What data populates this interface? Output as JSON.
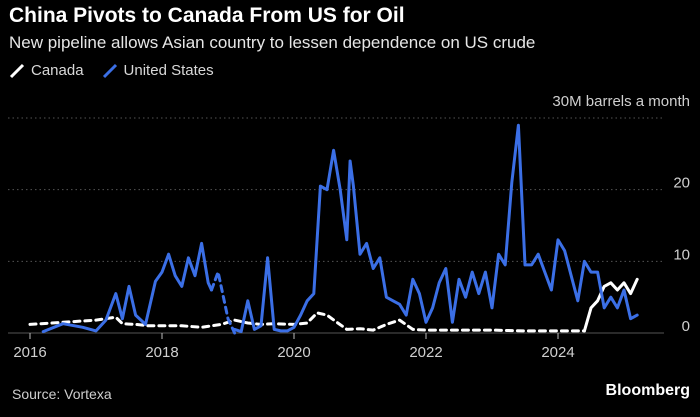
{
  "header": {
    "title": "China Pivots to Canada From US for Oil",
    "subtitle": "New pipeline allows Asian country to lessen dependence on US crude"
  },
  "footer": {
    "source": "Source: Vortexa",
    "brand": "Bloomberg"
  },
  "colors": {
    "background": "#000000",
    "canada": "#ffffff",
    "united_states": "#3b6fe6",
    "grid": "#555555",
    "axis_text": "#cfcfcf"
  },
  "chart_data": {
    "type": "line",
    "title": "China Pivots to Canada From US for Oil",
    "subtitle": "New pipeline allows Asian country to lessen dependence on US crude",
    "ylabel": "30M barrels a month",
    "xlim": [
      2015.7,
      2025.5
    ],
    "ylim": [
      0,
      30
    ],
    "x_ticks": [
      2016,
      2018,
      2020,
      2022,
      2024
    ],
    "x_tick_labels": [
      "2016",
      "2018",
      "2020",
      "2022",
      "2024"
    ],
    "y_ticks": [
      0,
      10,
      20,
      30
    ],
    "y_tick_labels": [
      "0",
      "10",
      "20",
      "30M barrels a month"
    ],
    "grid": true,
    "legend": "top-left",
    "series": [
      {
        "name": "Canada",
        "color": "#ffffff",
        "segments": [
          {
            "style": "dashed",
            "x": [
              2016.0,
              2016.5,
              2017.0,
              2017.3,
              2017.4,
              2017.6,
              2017.8,
              2018.0,
              2018.3,
              2018.6,
              2018.9,
              2019.1,
              2019.3,
              2019.5,
              2019.7,
              2020.0,
              2020.2,
              2020.35,
              2020.5,
              2020.65,
              2020.8,
              2021.0,
              2021.2,
              2021.4,
              2021.6,
              2021.8,
              2022.0,
              2022.5,
              2023.0,
              2023.5,
              2024.0,
              2024.4
            ],
            "y": [
              1.2,
              1.5,
              1.8,
              2.2,
              1.3,
              1.2,
              1.0,
              1.0,
              1.0,
              0.8,
              1.2,
              1.8,
              1.4,
              1.2,
              1.3,
              1.2,
              1.4,
              2.8,
              2.5,
              1.5,
              0.5,
              0.6,
              0.4,
              1.2,
              1.8,
              0.5,
              0.4,
              0.4,
              0.4,
              0.3,
              0.3,
              0.3
            ]
          },
          {
            "style": "solid",
            "x": [
              2024.4,
              2024.5,
              2024.6,
              2024.7,
              2024.8,
              2024.9,
              2025.0,
              2025.1,
              2025.2
            ],
            "y": [
              0.3,
              3.5,
              4.5,
              6.5,
              7.0,
              6.0,
              7.0,
              5.5,
              7.5
            ]
          }
        ]
      },
      {
        "name": "United States",
        "color": "#3b6fe6",
        "segments": [
          {
            "style": "solid",
            "x": [
              2016.2,
              2016.5,
              2016.8,
              2017.0,
              2017.15,
              2017.3,
              2017.4,
              2017.5,
              2017.6,
              2017.75,
              2017.9,
              2018.0,
              2018.1,
              2018.2,
              2018.3,
              2018.4,
              2018.5,
              2018.6,
              2018.7,
              2018.75
            ],
            "y": [
              0.2,
              1.3,
              0.8,
              0.3,
              1.8,
              5.5,
              2.0,
              6.5,
              2.5,
              1.2,
              7.2,
              8.5,
              11.0,
              8.0,
              6.5,
              10.5,
              8.0,
              12.5,
              7.0,
              6.0
            ]
          },
          {
            "style": "dashed",
            "x": [
              2018.75,
              2018.85,
              2019.0,
              2019.1
            ],
            "y": [
              6.0,
              8.5,
              2.0,
              0.0
            ]
          },
          {
            "style": "solid",
            "x": [
              2019.1,
              2019.2,
              2019.3,
              2019.4,
              2019.5,
              2019.6,
              2019.7,
              2019.8,
              2019.9,
              2020.0,
              2020.1,
              2020.2,
              2020.3,
              2020.4,
              2020.5,
              2020.6,
              2020.7,
              2020.8,
              2020.85,
              2020.9,
              2021.0,
              2021.1,
              2021.2,
              2021.3,
              2021.4,
              2021.5,
              2021.6,
              2021.7,
              2021.8,
              2021.9,
              2022.0,
              2022.1,
              2022.2,
              2022.3,
              2022.4,
              2022.5,
              2022.6,
              2022.7,
              2022.8,
              2022.9,
              2023.0,
              2023.1,
              2023.2,
              2023.3,
              2023.4,
              2023.5,
              2023.6,
              2023.7,
              2023.8,
              2023.9,
              2024.0,
              2024.1,
              2024.2,
              2024.3,
              2024.4,
              2024.5,
              2024.6,
              2024.7,
              2024.8,
              2024.9,
              2025.0,
              2025.1,
              2025.2
            ],
            "y": [
              0.5,
              0.2,
              4.5,
              0.5,
              1.0,
              10.5,
              0.5,
              0.3,
              0.3,
              0.8,
              2.5,
              4.5,
              5.5,
              20.5,
              20.0,
              25.5,
              20.0,
              13.0,
              24.0,
              20.5,
              11.0,
              12.5,
              9.0,
              10.5,
              5.0,
              4.5,
              4.0,
              2.5,
              7.5,
              5.5,
              1.5,
              3.5,
              7.0,
              9.0,
              1.5,
              7.5,
              5.0,
              8.5,
              5.5,
              8.5,
              3.5,
              11.0,
              9.5,
              21.0,
              29.0,
              9.5,
              9.5,
              11.0,
              8.5,
              6.0,
              13.0,
              11.5,
              8.0,
              4.5,
              10.0,
              8.5,
              8.5,
              3.5,
              5.0,
              3.5,
              6.0,
              2.0,
              2.5
            ]
          }
        ]
      }
    ]
  }
}
